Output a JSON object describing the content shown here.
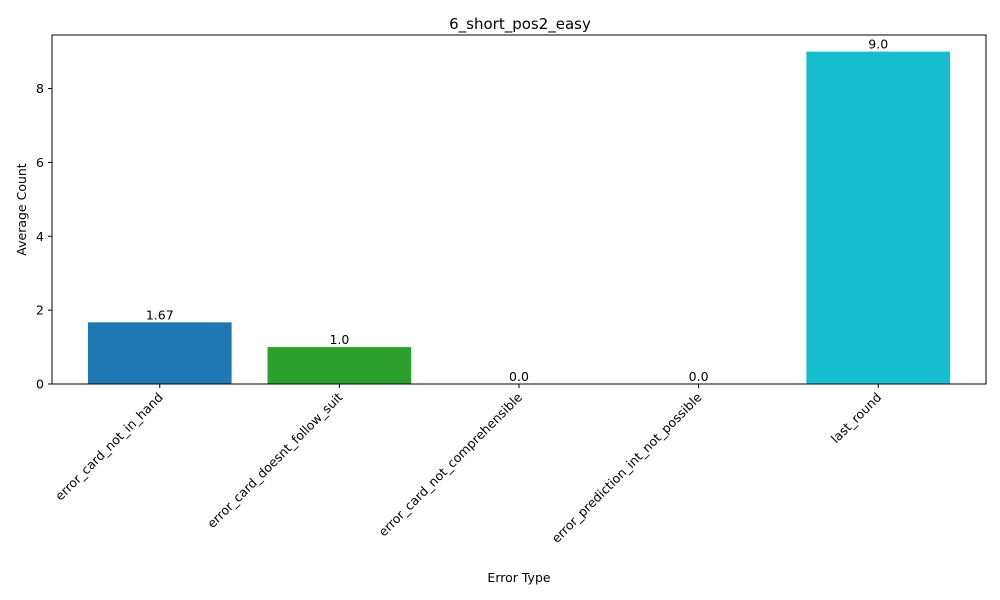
{
  "chart_data": {
    "type": "bar",
    "title": "6_short_pos2_easy",
    "xlabel": "Error Type",
    "ylabel": "Average Count",
    "categories": [
      "error_card_not_in_hand",
      "error_card_doesnt_follow_suit",
      "error_card_not_comprehensible",
      "error_prediction_int_not_possible",
      "last_round"
    ],
    "values": [
      1.67,
      1.0,
      0.0,
      0.0,
      9.0
    ],
    "value_labels": [
      "1.67",
      "1.0",
      "0.0",
      "0.0",
      "9.0"
    ],
    "colors": [
      "#1f77b4",
      "#2ca02c",
      "#7f7f7f",
      "#bcbd22",
      "#17becf"
    ],
    "ylim": [
      0,
      9.45
    ],
    "yticks": [
      0,
      2,
      4,
      6,
      8
    ],
    "grid": false,
    "legend": "none"
  }
}
